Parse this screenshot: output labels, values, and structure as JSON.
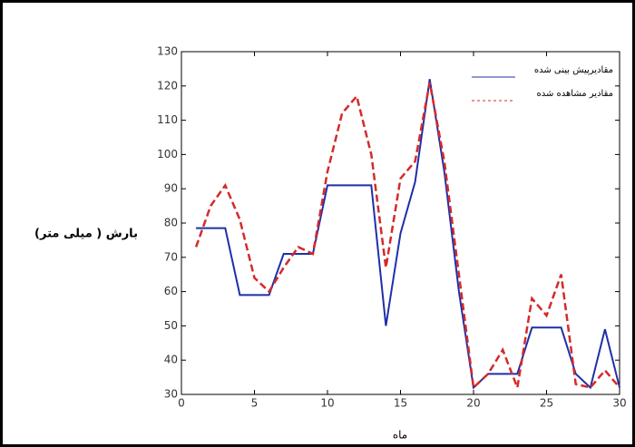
{
  "chart_data": {
    "type": "line",
    "y_label": "بارش ( میلی متر)",
    "x_label": "ماه",
    "x": [
      1,
      2,
      3,
      4,
      5,
      6,
      7,
      8,
      9,
      10,
      11,
      12,
      13,
      14,
      15,
      16,
      17,
      18,
      19,
      20,
      21,
      22,
      23,
      24,
      25,
      26,
      27,
      28,
      29,
      30
    ],
    "series": [
      {
        "name": "مقادیرپیش بینی شده",
        "color": "#1f2fa8",
        "dash": false,
        "values": [
          78.5,
          78.5,
          78.5,
          59,
          59,
          59,
          71,
          71,
          71,
          91,
          91,
          91,
          91,
          50,
          77,
          92,
          122,
          95,
          60,
          32,
          36,
          36,
          36,
          49.5,
          49.5,
          49.5,
          36,
          32,
          49,
          32
        ]
      },
      {
        "name": "مقادیر مشاهده شده",
        "color": "#d42a2a",
        "dash": true,
        "values": [
          73,
          85,
          91,
          81,
          64,
          60,
          67,
          73,
          71,
          95,
          112,
          117,
          100,
          67,
          93,
          98,
          121,
          98,
          65,
          32,
          36,
          43,
          32,
          58,
          53,
          65,
          33,
          32,
          37,
          32
        ]
      }
    ],
    "xlim": [
      0,
      30
    ],
    "xticks": [
      0,
      5,
      10,
      15,
      20,
      25,
      30
    ],
    "ylim": [
      30,
      130
    ],
    "yticks": [
      30,
      40,
      50,
      60,
      70,
      80,
      90,
      100,
      110,
      120,
      130
    ],
    "legend": "upper right"
  }
}
